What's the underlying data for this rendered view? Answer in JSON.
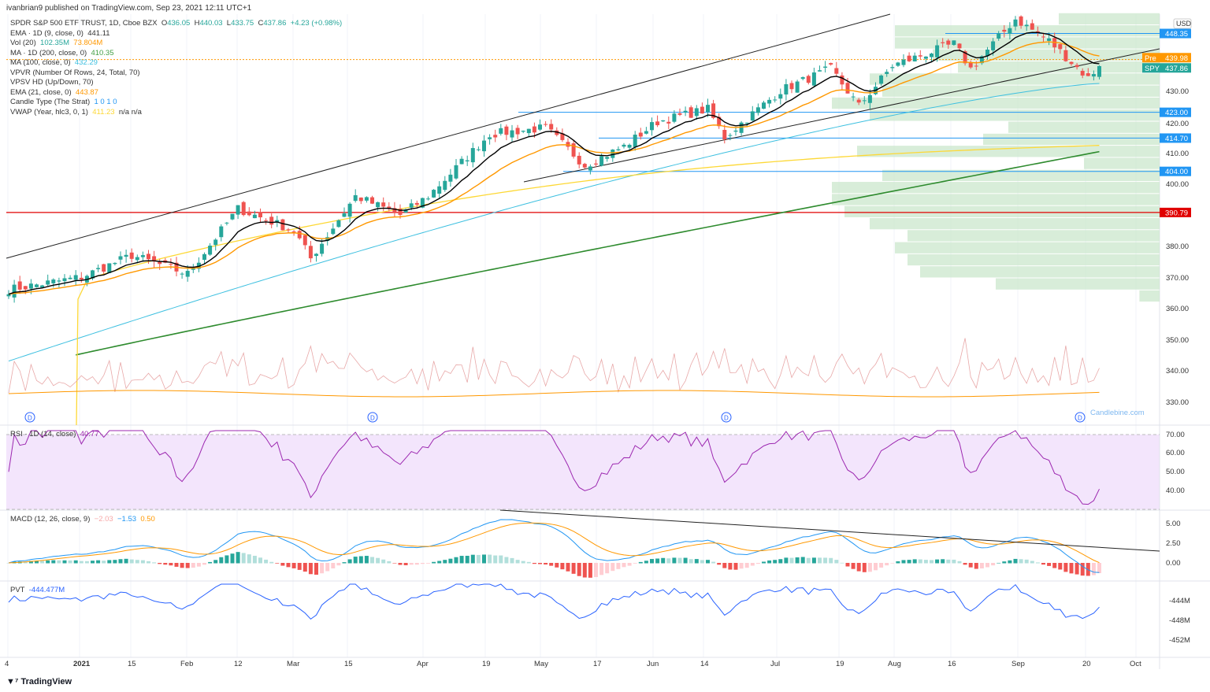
{
  "header": {
    "published": "ivanbrian9 published on TradingView.com, Sep 23, 2021 12:11 UTC+1"
  },
  "legend": {
    "symbol": "SPDR S&P 500 ETF TRUST, 1D, Cboe BZX",
    "o_label": "O",
    "o": "436.05",
    "h_label": "H",
    "h": "440.03",
    "l_label": "L",
    "l": "433.75",
    "c_label": "C",
    "c": "437.86",
    "change": "+4.23 (+0.98%)",
    "ema9": "EMA · 1D (9, close, 0)",
    "ema9_val": "441.11",
    "vol": "Vol (20)",
    "vol_val1": "102.35M",
    "vol_val2": "73.804M",
    "ma200": "MA · 1D (200, close, 0)",
    "ma200_val": "410.35",
    "ma100": "MA (100, close, 0)",
    "ma100_val": "432.29",
    "vpvr": "VPVR (Number Of Rows, 24, Total, 70)",
    "vpsv": "VPSV HD (Up/Down, 70)",
    "ema21": "EMA (21, close, 0)",
    "ema21_val": "443.87",
    "strat": "Candle Type (The Strat)",
    "strat_val": "1  0  1  0",
    "vwap": "VWAP (Year, hlc3, 0, 1)",
    "vwap_val": "411.23",
    "vwap_na": "n/a  n/a"
  },
  "rsi": {
    "label": "RSI · 1D (14, close)",
    "value": "40.77"
  },
  "macd": {
    "label": "MACD (12, 26, close, 9)",
    "hist": "−2.03",
    "macd": "−1.53",
    "signal": "0.50"
  },
  "pvt": {
    "label": "PVT",
    "value": "-444.477M"
  },
  "watermark": "Candlebine.com",
  "footer": {
    "logo": "TradingView"
  },
  "colors": {
    "up": "#26a69a",
    "down": "#ef5350",
    "ema9": "#000000",
    "ema21": "#ff9800",
    "ma100": "#3ec0e0",
    "ma200": "#2e8b2e",
    "vwap": "#fdd835",
    "rsi": "#9c27b0",
    "macd": "#2196f3",
    "signal": "#ff9800",
    "level": "#2196f3",
    "support": "#e00000"
  },
  "chart_data": {
    "type": "candlestick",
    "title": "SPDR S&P 500 ETF TRUST, 1D",
    "currency": "USD",
    "price_ticks": [
      "430.00",
      "420.00",
      "410.00",
      "400.00",
      "380.00",
      "370.00",
      "360.00",
      "350.00",
      "340.00",
      "330.00"
    ],
    "price_badges": [
      {
        "label": "",
        "value": "448.35",
        "price": 448.35,
        "color": "#2196f3"
      },
      {
        "label": "Pre",
        "value": "439.98",
        "price": 439.98,
        "color": "#ff9800"
      },
      {
        "label": "SPY",
        "value": "437.86",
        "price": 437.86,
        "color": "#26a69a"
      },
      {
        "label": "",
        "value": "423.00",
        "price": 423.0,
        "color": "#2196f3"
      },
      {
        "label": "",
        "value": "414.70",
        "price": 414.7,
        "color": "#2196f3"
      },
      {
        "label": "",
        "value": "404.00",
        "price": 404.0,
        "color": "#2196f3"
      },
      {
        "label": "",
        "value": "390.79",
        "price": 390.79,
        "color": "#e00000"
      }
    ],
    "rsi_ticks": [
      "70.00",
      "60.00",
      "50.00",
      "40.00"
    ],
    "macd_ticks": [
      "5.00",
      "2.50",
      "0.00"
    ],
    "pvt_ticks": [
      "-444M",
      "-448M",
      "-452M"
    ],
    "time_ticks": [
      "4",
      "2021",
      "15",
      "Feb",
      "12",
      "Mar",
      "15",
      "Apr",
      "19",
      "May",
      "17",
      "Jun",
      "14",
      "Jul",
      "19",
      "Aug",
      "16",
      "Sep",
      "20",
      "Oct"
    ],
    "close_waypoints": [
      [
        0,
        366
      ],
      [
        13,
        370
      ],
      [
        22,
        377
      ],
      [
        32,
        371
      ],
      [
        41,
        392
      ],
      [
        51,
        385
      ],
      [
        54,
        376
      ],
      [
        62,
        396
      ],
      [
        70,
        390
      ],
      [
        75,
        396
      ],
      [
        86,
        416
      ],
      [
        96,
        418
      ],
      [
        103,
        406
      ],
      [
        110,
        412
      ],
      [
        116,
        420
      ],
      [
        125,
        424
      ],
      [
        128,
        415
      ],
      [
        138,
        430
      ],
      [
        147,
        437
      ],
      [
        152,
        425
      ],
      [
        158,
        438
      ],
      [
        169,
        445
      ],
      [
        172,
        437
      ],
      [
        180,
        453
      ],
      [
        186,
        446
      ],
      [
        193,
        434
      ],
      [
        195,
        437.86
      ]
    ],
    "last_ma100": 432.29,
    "last_ma200": 410.35,
    "last_vwap": 411.23,
    "volume_profile": {
      "price_range": [
        362,
        455
      ],
      "rows": [
        0.08,
        0.65,
        0.95,
        1.0,
        1.05,
        1.0,
        1.15,
        1.25,
        1.3,
        1.3,
        1.1,
        0.3,
        1.2,
        0.7,
        0.6,
        1.15,
        1.3,
        1.1,
        1.15,
        0.8,
        0.9,
        1.05,
        1.05,
        0.4
      ]
    },
    "last_rsi": 40.77
  }
}
